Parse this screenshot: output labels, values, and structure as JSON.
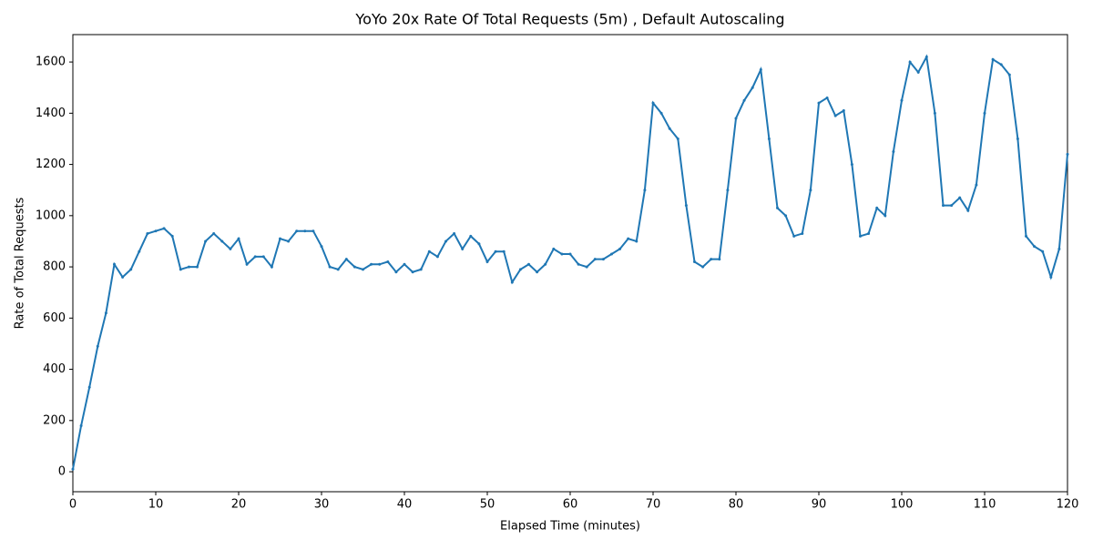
{
  "chart_data": {
    "type": "line",
    "title": "YoYo 20x Rate Of Total Requests (5m) , Default Autoscaling",
    "xlabel": "Elapsed Time (minutes)",
    "ylabel": "Rate of Total Requests",
    "color": "#1f77b4",
    "x": [
      0,
      1,
      2,
      3,
      4,
      5,
      6,
      7,
      8,
      9,
      10,
      11,
      12,
      13,
      14,
      15,
      16,
      17,
      18,
      19,
      20,
      21,
      22,
      23,
      24,
      25,
      26,
      27,
      28,
      29,
      30,
      31,
      32,
      33,
      34,
      35,
      36,
      37,
      38,
      39,
      40,
      41,
      42,
      43,
      44,
      45,
      46,
      47,
      48,
      49,
      50,
      51,
      52,
      53,
      54,
      55,
      56,
      57,
      58,
      59,
      60,
      61,
      62,
      63,
      64,
      65,
      66,
      67,
      68,
      69,
      70,
      71,
      72,
      73,
      74,
      75,
      76,
      77,
      78,
      79,
      80,
      81,
      82,
      83,
      84,
      85,
      86,
      87,
      88,
      89,
      90,
      91,
      92,
      93,
      94,
      95,
      96,
      97,
      98,
      99,
      100,
      101,
      102,
      103,
      104,
      105,
      106,
      107,
      108,
      109,
      110,
      111,
      112,
      113,
      114,
      115,
      116,
      117,
      118,
      119,
      120
    ],
    "values": [
      10,
      180,
      330,
      490,
      620,
      810,
      760,
      790,
      860,
      930,
      940,
      950,
      920,
      790,
      800,
      800,
      900,
      930,
      900,
      870,
      910,
      810,
      840,
      840,
      800,
      910,
      900,
      940,
      940,
      940,
      880,
      800,
      790,
      830,
      800,
      790,
      810,
      810,
      820,
      780,
      810,
      780,
      790,
      860,
      840,
      900,
      930,
      870,
      920,
      890,
      820,
      860,
      860,
      740,
      790,
      810,
      780,
      810,
      870,
      850,
      850,
      810,
      800,
      830,
      830,
      850,
      870,
      910,
      900,
      1100,
      1440,
      1400,
      1340,
      1300,
      1040,
      820,
      800,
      830,
      830,
      1100,
      1380,
      1450,
      1500,
      1570,
      1300,
      1030,
      1000,
      920,
      930,
      1100,
      1440,
      1460,
      1390,
      1410,
      1200,
      920,
      930,
      1030,
      1000,
      1250,
      1450,
      1600,
      1560,
      1620,
      1400,
      1040,
      1040,
      1070,
      1020,
      1120,
      1400,
      1610,
      1590,
      1550,
      1300,
      920,
      880,
      860,
      760,
      870,
      1240
    ],
    "xlim": [
      0,
      120
    ],
    "ylim": [
      -78,
      1707
    ],
    "xticks": [
      0,
      10,
      20,
      30,
      40,
      50,
      60,
      70,
      80,
      90,
      100,
      110,
      120
    ],
    "yticks": [
      0,
      200,
      400,
      600,
      800,
      1000,
      1200,
      1400,
      1600
    ],
    "grid": false
  }
}
